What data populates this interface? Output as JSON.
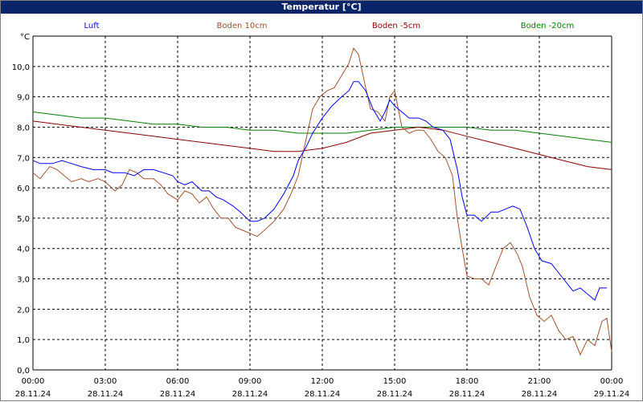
{
  "window": {
    "title": "Temperatur [°C]"
  },
  "chart_data": {
    "type": "line",
    "title": "Temperatur [°C]",
    "ylabel": "°C",
    "xlabel": "",
    "ylim": [
      0,
      11
    ],
    "xlim": [
      0,
      24
    ],
    "grid": true,
    "legend_position": "top",
    "y_ticks": [
      "0,0",
      "1,0",
      "2,0",
      "3,0",
      "4,0",
      "5,0",
      "6,0",
      "7,0",
      "8,0",
      "9,0",
      "10,0"
    ],
    "x_ticks": [
      {
        "time": "00:00",
        "date": "28.11.24"
      },
      {
        "time": "03:00",
        "date": "28.11.24"
      },
      {
        "time": "06:00",
        "date": "28.11.24"
      },
      {
        "time": "09:00",
        "date": "28.11.24"
      },
      {
        "time": "12:00",
        "date": "28.11.24"
      },
      {
        "time": "15:00",
        "date": "28.11.24"
      },
      {
        "time": "18:00",
        "date": "28.11.24"
      },
      {
        "time": "21:00",
        "date": "28.11.24"
      },
      {
        "time": "00:00",
        "date": "29.11.24"
      }
    ],
    "series": [
      {
        "name": "Luft",
        "color": "#0000ff",
        "points": [
          [
            0,
            6.9
          ],
          [
            0.3,
            6.8
          ],
          [
            0.8,
            6.8
          ],
          [
            1.2,
            6.9
          ],
          [
            1.6,
            6.8
          ],
          [
            2.0,
            6.7
          ],
          [
            2.5,
            6.6
          ],
          [
            3.0,
            6.6
          ],
          [
            3.3,
            6.5
          ],
          [
            3.8,
            6.5
          ],
          [
            4.2,
            6.4
          ],
          [
            4.6,
            6.6
          ],
          [
            5.0,
            6.6
          ],
          [
            5.4,
            6.5
          ],
          [
            5.8,
            6.4
          ],
          [
            6.0,
            6.2
          ],
          [
            6.3,
            6.1
          ],
          [
            6.6,
            6.2
          ],
          [
            7.0,
            5.9
          ],
          [
            7.3,
            5.9
          ],
          [
            7.6,
            5.7
          ],
          [
            7.9,
            5.6
          ],
          [
            8.3,
            5.4
          ],
          [
            8.6,
            5.2
          ],
          [
            9.0,
            4.9
          ],
          [
            9.3,
            4.9
          ],
          [
            9.6,
            5.0
          ],
          [
            10.0,
            5.3
          ],
          [
            10.4,
            5.8
          ],
          [
            10.8,
            6.4
          ],
          [
            11.0,
            6.9
          ],
          [
            11.3,
            7.3
          ],
          [
            11.6,
            7.8
          ],
          [
            12.0,
            8.3
          ],
          [
            12.4,
            8.7
          ],
          [
            12.8,
            9.0
          ],
          [
            13.1,
            9.2
          ],
          [
            13.3,
            9.5
          ],
          [
            13.5,
            9.5
          ],
          [
            13.8,
            9.2
          ],
          [
            14.1,
            8.6
          ],
          [
            14.4,
            8.2
          ],
          [
            14.6,
            8.5
          ],
          [
            14.8,
            8.9
          ],
          [
            15.0,
            8.7
          ],
          [
            15.3,
            8.5
          ],
          [
            15.6,
            8.3
          ],
          [
            16.0,
            8.3
          ],
          [
            16.3,
            8.2
          ],
          [
            16.6,
            8.0
          ],
          [
            17.0,
            7.9
          ],
          [
            17.3,
            7.6
          ],
          [
            17.6,
            6.6
          ],
          [
            17.8,
            5.7
          ],
          [
            18.0,
            5.1
          ],
          [
            18.3,
            5.1
          ],
          [
            18.6,
            4.9
          ],
          [
            19.0,
            5.2
          ],
          [
            19.3,
            5.2
          ],
          [
            19.6,
            5.3
          ],
          [
            19.9,
            5.4
          ],
          [
            20.2,
            5.3
          ],
          [
            20.5,
            4.7
          ],
          [
            20.8,
            4.0
          ],
          [
            21.1,
            3.6
          ],
          [
            21.5,
            3.5
          ],
          [
            21.8,
            3.2
          ],
          [
            22.1,
            2.9
          ],
          [
            22.4,
            2.6
          ],
          [
            22.7,
            2.7
          ],
          [
            23.0,
            2.5
          ],
          [
            23.3,
            2.3
          ],
          [
            23.5,
            2.7
          ],
          [
            23.8,
            2.7
          ]
        ]
      },
      {
        "name": "Boden 10cm",
        "color": "#a0522d",
        "points": [
          [
            0,
            6.5
          ],
          [
            0.3,
            6.3
          ],
          [
            0.7,
            6.7
          ],
          [
            1.0,
            6.6
          ],
          [
            1.3,
            6.4
          ],
          [
            1.6,
            6.2
          ],
          [
            2.0,
            6.3
          ],
          [
            2.3,
            6.2
          ],
          [
            2.7,
            6.3
          ],
          [
            3.0,
            6.2
          ],
          [
            3.4,
            5.9
          ],
          [
            3.7,
            6.1
          ],
          [
            4.0,
            6.6
          ],
          [
            4.3,
            6.5
          ],
          [
            4.6,
            6.3
          ],
          [
            5.0,
            6.3
          ],
          [
            5.3,
            6.1
          ],
          [
            5.6,
            5.8
          ],
          [
            6.0,
            5.6
          ],
          [
            6.3,
            5.9
          ],
          [
            6.6,
            5.8
          ],
          [
            6.9,
            5.5
          ],
          [
            7.2,
            5.7
          ],
          [
            7.5,
            5.3
          ],
          [
            7.8,
            5.0
          ],
          [
            8.1,
            5.0
          ],
          [
            8.4,
            4.7
          ],
          [
            8.7,
            4.6
          ],
          [
            9.0,
            4.5
          ],
          [
            9.3,
            4.4
          ],
          [
            9.6,
            4.6
          ],
          [
            10.0,
            4.9
          ],
          [
            10.4,
            5.3
          ],
          [
            10.7,
            5.8
          ],
          [
            11.0,
            6.4
          ],
          [
            11.3,
            7.5
          ],
          [
            11.6,
            8.6
          ],
          [
            11.9,
            9.0
          ],
          [
            12.2,
            9.2
          ],
          [
            12.5,
            9.3
          ],
          [
            12.8,
            9.7
          ],
          [
            13.1,
            10.1
          ],
          [
            13.3,
            10.6
          ],
          [
            13.5,
            10.4
          ],
          [
            13.8,
            9.3
          ],
          [
            14.0,
            8.6
          ],
          [
            14.3,
            8.5
          ],
          [
            14.6,
            8.2
          ],
          [
            14.8,
            9.0
          ],
          [
            15.0,
            9.2
          ],
          [
            15.3,
            8.0
          ],
          [
            15.6,
            7.8
          ],
          [
            15.9,
            7.9
          ],
          [
            16.2,
            7.9
          ],
          [
            16.5,
            7.6
          ],
          [
            16.8,
            7.2
          ],
          [
            17.1,
            7.0
          ],
          [
            17.4,
            6.4
          ],
          [
            17.6,
            5.0
          ],
          [
            17.8,
            4.0
          ],
          [
            18.0,
            3.1
          ],
          [
            18.3,
            3.0
          ],
          [
            18.6,
            3.0
          ],
          [
            18.9,
            2.8
          ],
          [
            19.2,
            3.4
          ],
          [
            19.5,
            4.0
          ],
          [
            19.8,
            4.2
          ],
          [
            20.1,
            3.8
          ],
          [
            20.3,
            3.4
          ],
          [
            20.6,
            2.4
          ],
          [
            20.9,
            1.8
          ],
          [
            21.2,
            1.6
          ],
          [
            21.5,
            1.8
          ],
          [
            21.8,
            1.3
          ],
          [
            22.1,
            1.0
          ],
          [
            22.4,
            1.1
          ],
          [
            22.7,
            0.5
          ],
          [
            23.0,
            1.0
          ],
          [
            23.3,
            0.8
          ],
          [
            23.6,
            1.6
          ],
          [
            23.8,
            1.7
          ],
          [
            24.0,
            0.6
          ]
        ]
      },
      {
        "name": "Boden -5cm",
        "color": "#8b0000",
        "points": [
          [
            0,
            8.2
          ],
          [
            1.0,
            8.1
          ],
          [
            2.0,
            8.0
          ],
          [
            3.0,
            7.9
          ],
          [
            4.0,
            7.8
          ],
          [
            5.0,
            7.7
          ],
          [
            6.0,
            7.6
          ],
          [
            7.0,
            7.5
          ],
          [
            8.0,
            7.4
          ],
          [
            9.0,
            7.3
          ],
          [
            10.0,
            7.2
          ],
          [
            11.0,
            7.2
          ],
          [
            12.0,
            7.3
          ],
          [
            13.0,
            7.5
          ],
          [
            14.0,
            7.8
          ],
          [
            15.0,
            7.9
          ],
          [
            16.0,
            8.0
          ],
          [
            17.0,
            7.9
          ],
          [
            18.0,
            7.7
          ],
          [
            19.0,
            7.5
          ],
          [
            20.0,
            7.3
          ],
          [
            21.0,
            7.1
          ],
          [
            22.0,
            6.9
          ],
          [
            23.0,
            6.7
          ],
          [
            24.0,
            6.6
          ]
        ]
      },
      {
        "name": "Boden -20cm",
        "color": "#008000",
        "points": [
          [
            0,
            8.5
          ],
          [
            1.0,
            8.4
          ],
          [
            2.0,
            8.3
          ],
          [
            3.0,
            8.3
          ],
          [
            4.0,
            8.2
          ],
          [
            5.0,
            8.1
          ],
          [
            6.0,
            8.1
          ],
          [
            7.0,
            8.0
          ],
          [
            8.0,
            8.0
          ],
          [
            9.0,
            7.9
          ],
          [
            10.0,
            7.9
          ],
          [
            11.0,
            7.8
          ],
          [
            12.0,
            7.8
          ],
          [
            13.0,
            7.8
          ],
          [
            14.0,
            7.9
          ],
          [
            15.0,
            8.0
          ],
          [
            16.0,
            8.0
          ],
          [
            17.0,
            8.0
          ],
          [
            18.0,
            8.0
          ],
          [
            19.0,
            7.9
          ],
          [
            20.0,
            7.9
          ],
          [
            21.0,
            7.8
          ],
          [
            22.0,
            7.7
          ],
          [
            23.0,
            7.6
          ],
          [
            24.0,
            7.5
          ]
        ]
      }
    ]
  }
}
